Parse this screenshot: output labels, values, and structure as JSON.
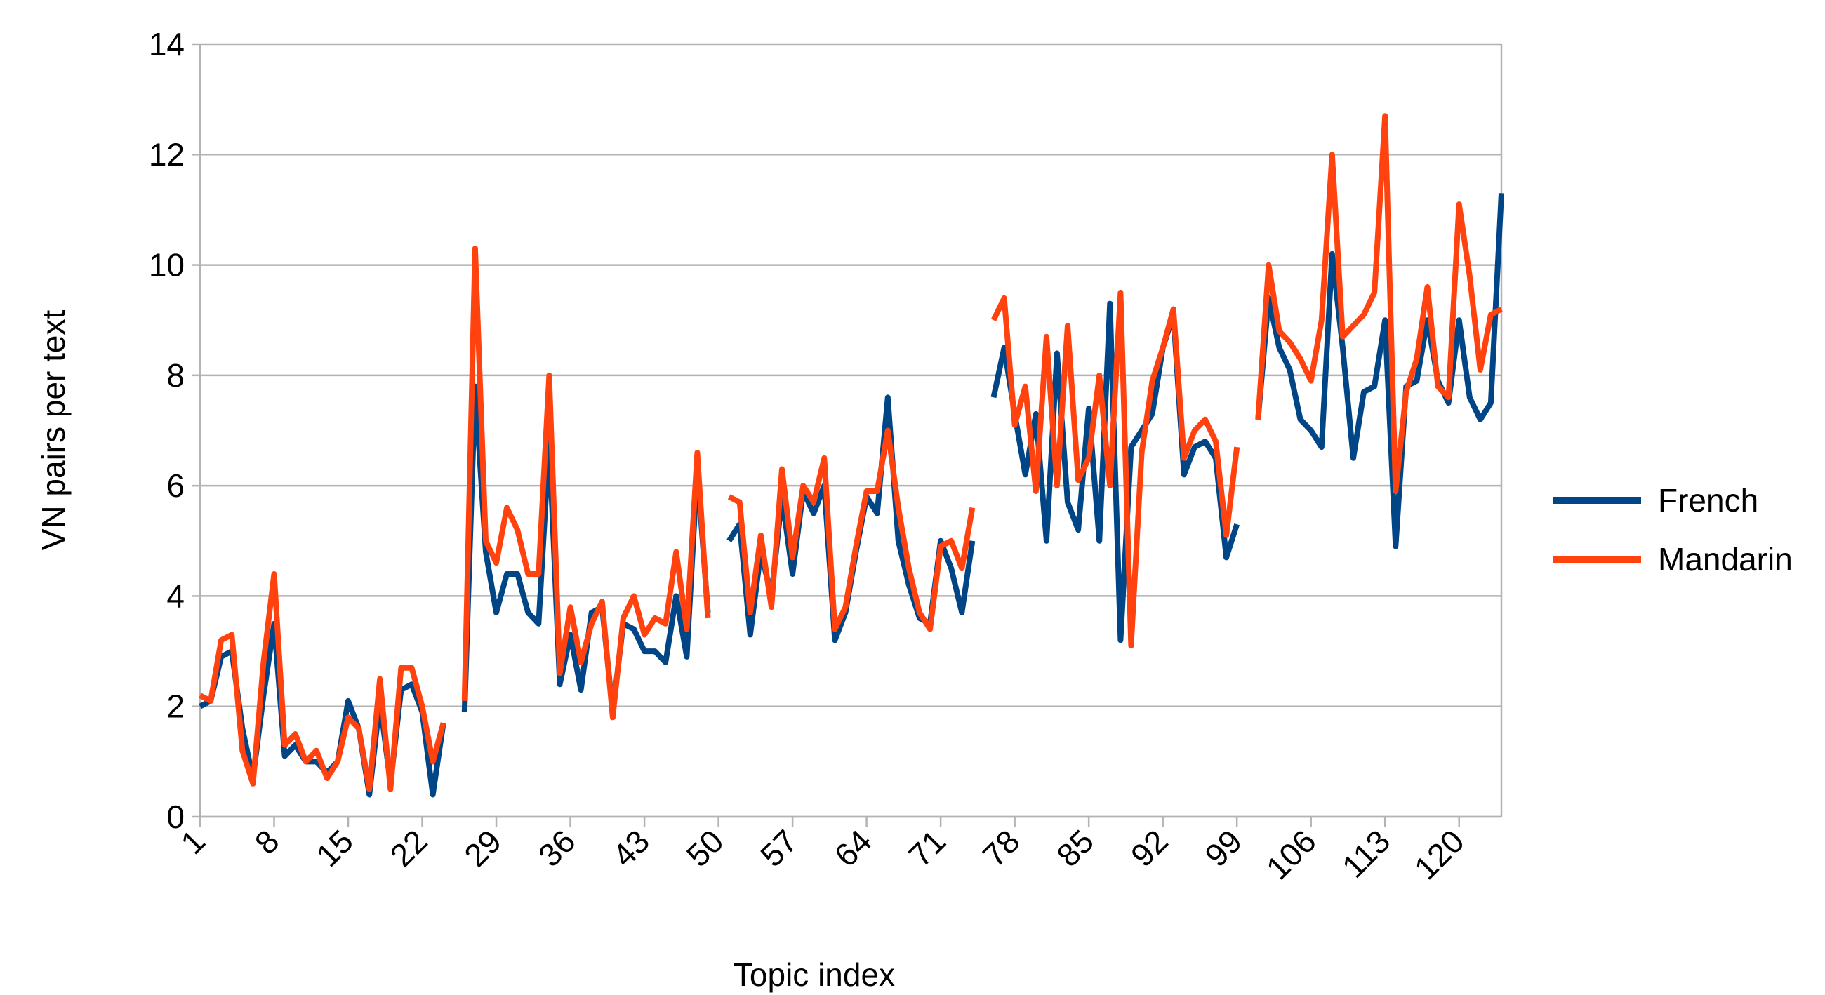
{
  "chart_data": {
    "type": "line",
    "x": [
      1,
      2,
      3,
      4,
      5,
      6,
      7,
      8,
      9,
      10,
      11,
      12,
      13,
      14,
      15,
      16,
      17,
      18,
      19,
      20,
      21,
      22,
      23,
      24,
      25,
      26,
      27,
      28,
      29,
      30,
      31,
      32,
      33,
      34,
      35,
      36,
      37,
      38,
      39,
      40,
      41,
      42,
      43,
      44,
      45,
      46,
      47,
      48,
      49,
      50,
      51,
      52,
      53,
      54,
      55,
      56,
      57,
      58,
      59,
      60,
      61,
      62,
      63,
      64,
      65,
      66,
      67,
      68,
      69,
      70,
      71,
      72,
      73,
      74,
      75,
      76,
      77,
      78,
      79,
      80,
      81,
      82,
      83,
      84,
      85,
      86,
      87,
      88,
      89,
      90,
      91,
      92,
      93,
      94,
      95,
      96,
      97,
      98,
      99,
      100,
      101,
      102,
      103,
      104,
      105,
      106,
      107,
      108,
      109,
      110,
      111,
      112,
      113,
      114,
      115,
      116,
      117,
      118,
      119,
      120,
      121,
      122,
      123,
      124
    ],
    "series": [
      {
        "name": "French",
        "color": "#004586",
        "values": [
          2.0,
          2.1,
          2.9,
          3.0,
          1.6,
          0.7,
          2.2,
          3.5,
          1.1,
          1.3,
          1.0,
          1.0,
          0.8,
          1.0,
          2.1,
          1.6,
          0.4,
          2.1,
          0.6,
          2.3,
          2.4,
          1.9,
          0.4,
          1.7,
          null,
          1.9,
          7.8,
          4.8,
          3.7,
          4.4,
          4.4,
          3.7,
          3.5,
          6.8,
          2.4,
          3.3,
          2.3,
          3.7,
          3.8,
          1.9,
          3.5,
          3.4,
          3.0,
          3.0,
          2.8,
          4.0,
          2.9,
          6.3,
          3.7,
          null,
          5.0,
          5.3,
          3.3,
          4.8,
          4.0,
          5.8,
          4.4,
          5.9,
          5.5,
          6.0,
          3.2,
          3.7,
          4.8,
          5.8,
          5.5,
          7.6,
          5.0,
          4.2,
          3.6,
          3.5,
          5.0,
          4.5,
          3.7,
          5.0,
          null,
          7.6,
          8.5,
          7.3,
          6.2,
          7.3,
          5.0,
          8.4,
          5.7,
          5.2,
          7.4,
          5.0,
          9.3,
          3.2,
          6.7,
          7.0,
          7.3,
          8.5,
          9.1,
          6.2,
          6.7,
          6.8,
          6.5,
          4.7,
          5.3,
          null,
          7.2,
          9.4,
          8.5,
          8.1,
          7.2,
          7.0,
          6.7,
          10.2,
          8.5,
          6.5,
          7.7,
          7.8,
          9.0,
          4.9,
          7.8,
          7.9,
          9.0,
          7.9,
          7.5,
          9.0,
          7.6,
          7.2,
          7.5,
          11.3
        ]
      },
      {
        "name": "Mandarin",
        "color": "#ff420e",
        "values": [
          2.2,
          2.1,
          3.2,
          3.3,
          1.2,
          0.6,
          2.8,
          4.4,
          1.3,
          1.5,
          1.0,
          1.2,
          0.7,
          1.0,
          1.8,
          1.6,
          0.5,
          2.5,
          0.5,
          2.7,
          2.7,
          2.0,
          1.0,
          1.7,
          null,
          2.1,
          10.3,
          5.0,
          4.6,
          5.6,
          5.2,
          4.4,
          4.4,
          8.0,
          2.6,
          3.8,
          2.8,
          3.5,
          3.9,
          1.8,
          3.6,
          4.0,
          3.3,
          3.6,
          3.5,
          4.8,
          3.4,
          6.6,
          3.6,
          null,
          5.8,
          5.7,
          3.7,
          5.1,
          3.8,
          6.3,
          4.7,
          6.0,
          5.7,
          6.5,
          3.4,
          3.8,
          4.9,
          5.9,
          5.9,
          7.0,
          5.6,
          4.5,
          3.7,
          3.4,
          4.9,
          5.0,
          4.5,
          5.6,
          null,
          9.0,
          9.4,
          7.1,
          7.8,
          5.9,
          8.7,
          6.0,
          8.9,
          6.1,
          6.5,
          8.0,
          6.0,
          9.5,
          3.1,
          6.6,
          7.9,
          8.5,
          9.2,
          6.5,
          7.0,
          7.2,
          6.8,
          5.1,
          6.7,
          null,
          7.2,
          10.0,
          8.8,
          8.6,
          8.3,
          7.9,
          9.0,
          12.0,
          8.7,
          8.9,
          9.1,
          9.5,
          12.7,
          5.9,
          7.7,
          8.3,
          9.6,
          7.8,
          7.6,
          11.1,
          9.8,
          8.1,
          9.1,
          9.2
        ]
      }
    ],
    "xlabel": "Topic index",
    "ylabel": "VN pairs per text",
    "xlim": [
      1,
      124
    ],
    "xticks": [
      1,
      8,
      15,
      22,
      29,
      36,
      43,
      50,
      57,
      64,
      71,
      78,
      85,
      92,
      99,
      106,
      113,
      120
    ],
    "ylim": [
      0,
      14
    ],
    "yticks": [
      0,
      2,
      4,
      6,
      8,
      10,
      12,
      14
    ],
    "grid": true,
    "legend": "right"
  }
}
